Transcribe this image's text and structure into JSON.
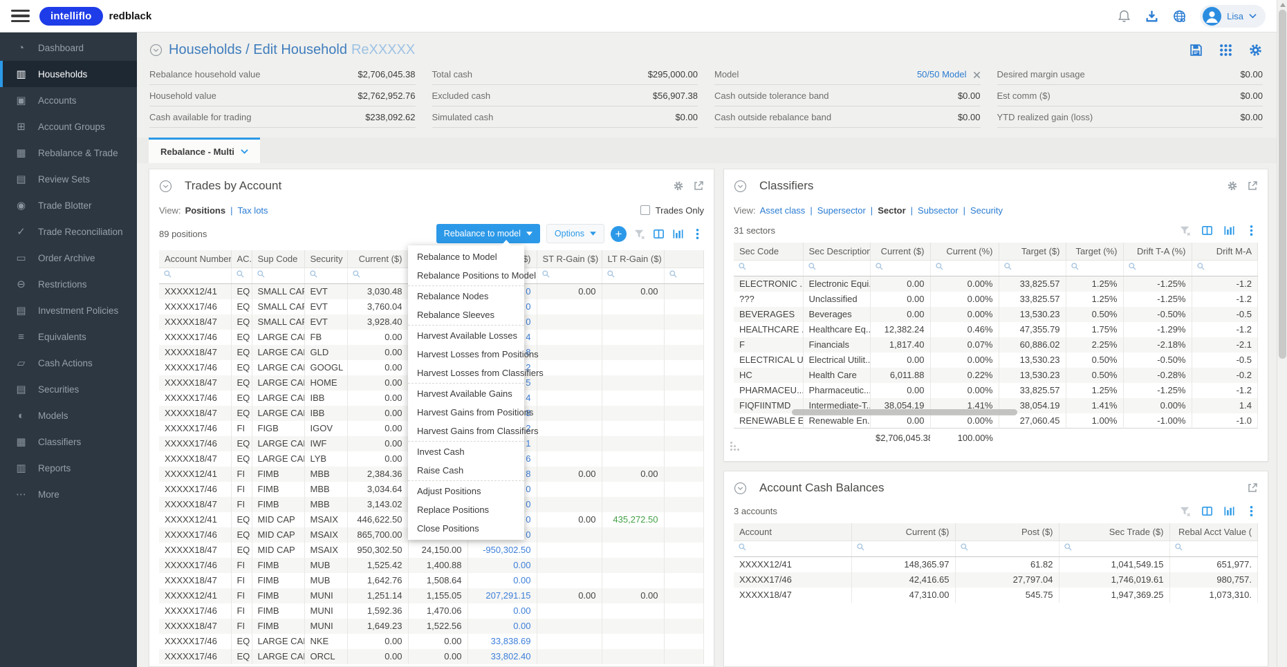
{
  "colors": {
    "accent": "#2c99e8",
    "brand": "#1e3ce8",
    "link": "#2a7cd2",
    "bluetxt": "#3d7fd9",
    "green": "#43a047",
    "sidebar": "#2d3742",
    "pagebg": "#f0f0ee"
  },
  "topbar": {
    "brand_primary": "intelliflo",
    "brand_secondary": "redblack",
    "user_name": "Lisa"
  },
  "sidebar": {
    "items": [
      {
        "label": "Dashboard",
        "icon": "dashboard-icon"
      },
      {
        "label": "Households",
        "icon": "households-icon",
        "active": true
      },
      {
        "label": "Accounts",
        "icon": "accounts-icon"
      },
      {
        "label": "Account Groups",
        "icon": "account-groups-icon"
      },
      {
        "label": "Rebalance & Trade",
        "icon": "rebalance-trade-icon"
      },
      {
        "label": "Review Sets",
        "icon": "review-sets-icon"
      },
      {
        "label": "Trade Blotter",
        "icon": "trade-blotter-icon"
      },
      {
        "label": "Trade Reconciliation",
        "icon": "trade-reconciliation-icon"
      },
      {
        "label": "Order Archive",
        "icon": "order-archive-icon"
      },
      {
        "label": "Restrictions",
        "icon": "restrictions-icon"
      },
      {
        "label": "Investment Policies",
        "icon": "investment-policies-icon"
      },
      {
        "label": "Equivalents",
        "icon": "equivalents-icon"
      },
      {
        "label": "Cash Actions",
        "icon": "cash-actions-icon"
      },
      {
        "label": "Securities",
        "icon": "securities-icon"
      },
      {
        "label": "Models",
        "icon": "models-icon"
      },
      {
        "label": "Classifiers",
        "icon": "classifiers-icon"
      },
      {
        "label": "Reports",
        "icon": "reports-icon"
      },
      {
        "label": "More",
        "icon": "more-icon"
      }
    ]
  },
  "page": {
    "breadcrumb_main": "Households / Edit Household",
    "breadcrumb_id": "ReXXXXX"
  },
  "summary": {
    "columns": [
      [
        {
          "label": "Rebalance household value",
          "value": "$2,706,045.38"
        },
        {
          "label": "Household value",
          "value": "$2,762,952.76"
        },
        {
          "label": "Cash available for trading",
          "value": "$238,092.62"
        }
      ],
      [
        {
          "label": "Total cash",
          "value": "$295,000.00"
        },
        {
          "label": "Excluded cash",
          "value": "$56,907.38"
        },
        {
          "label": "Simulated cash",
          "value": "$0.00"
        }
      ],
      [
        {
          "label": "Model",
          "value": "50/50 Model",
          "link": true,
          "closable": true
        },
        {
          "label": "Cash outside tolerance band",
          "value": "$0.00"
        },
        {
          "label": "Cash outside rebalance band",
          "value": "$0.00"
        }
      ],
      [
        {
          "label": "Desired margin usage",
          "value": "$0.00"
        },
        {
          "label": "Est comm ($)",
          "value": "$0.00"
        },
        {
          "label": "YTD realized gain (loss)",
          "value": "$0.00"
        }
      ]
    ]
  },
  "tab": {
    "label": "Rebalance - Multi"
  },
  "trades": {
    "title": "Trades by Account",
    "view_label": "View:",
    "views": [
      {
        "label": "Positions",
        "active": true
      },
      {
        "label": "Tax lots"
      }
    ],
    "trades_only_label": "Trades Only",
    "count": "89 positions",
    "rebalance_button": "Rebalance to model",
    "options_button": "Options",
    "columns": [
      "Account Number",
      "AC...",
      "Sup Code",
      "Security",
      "Current ($)",
      "",
      "($)",
      "ST R-Gain ($)",
      "LT R-Gain ($)",
      ""
    ],
    "rows": [
      [
        "XXXXX12/41",
        "EQ",
        "SMALL CAP",
        "EVT",
        "3,030.48",
        "",
        "0",
        "0.00",
        "0.00",
        ""
      ],
      [
        "XXXXX17/46",
        "EQ",
        "SMALL CAP",
        "EVT",
        "3,760.04",
        "",
        "0",
        "",
        "",
        ""
      ],
      [
        "XXXXX18/47",
        "EQ",
        "SMALL CAP",
        "EVT",
        "3,928.40",
        "",
        "0",
        "",
        "",
        ""
      ],
      [
        "XXXXX17/46",
        "EQ",
        "LARGE CAP",
        "FB",
        "0.00",
        "",
        "4",
        "",
        "",
        ""
      ],
      [
        "XXXXX18/47",
        "EQ",
        "LARGE CAP",
        "GLD",
        "0.00",
        "",
        "8",
        "",
        "",
        ""
      ],
      [
        "XXXXX17/46",
        "EQ",
        "LARGE CAP",
        "GOOGL",
        "0.00",
        "",
        "2",
        "",
        "",
        ""
      ],
      [
        "XXXXX18/47",
        "EQ",
        "LARGE CAP",
        "HOME",
        "0.00",
        "",
        "5",
        "",
        "",
        ""
      ],
      [
        "XXXXX17/46",
        "EQ",
        "LARGE CAP",
        "IBB",
        "0.00",
        "",
        "4",
        "",
        "",
        ""
      ],
      [
        "XXXXX18/47",
        "EQ",
        "LARGE CAP",
        "IBB",
        "0.00",
        "",
        "8",
        "",
        "",
        ""
      ],
      [
        "XXXXX17/46",
        "FI",
        "FIGB",
        "IGOV",
        "0.00",
        "",
        "2",
        "",
        "",
        ""
      ],
      [
        "XXXXX17/46",
        "EQ",
        "LARGE CAP",
        "IWF",
        "0.00",
        "",
        "1",
        "",
        "",
        ""
      ],
      [
        "XXXXX18/47",
        "EQ",
        "LARGE CAP",
        "LYB",
        "0.00",
        "",
        "6",
        "",
        "",
        ""
      ],
      [
        "XXXXX12/41",
        "FI",
        "FIMB",
        "MBB",
        "2,384.36",
        "",
        "8",
        "0.00",
        "0.00",
        ""
      ],
      [
        "XXXXX17/46",
        "FI",
        "FIMB",
        "MBB",
        "3,034.64",
        "",
        "0",
        "",
        "",
        ""
      ],
      [
        "XXXXX18/47",
        "FI",
        "FIMB",
        "MBB",
        "3,143.02",
        "",
        "0",
        "",
        "",
        ""
      ],
      [
        "XXXXX12/41",
        "EQ",
        "MID CAP",
        "MSAIX",
        "446,622.50",
        "",
        "0",
        "0.00",
        "435,272.50",
        ""
      ],
      [
        "XXXXX17/46",
        "EQ",
        "MID CAP",
        "MSAIX",
        "865,700.00",
        "",
        "0",
        "",
        "",
        ""
      ],
      [
        "XXXXX18/47",
        "EQ",
        "MID CAP",
        "MSAIX",
        "950,302.50",
        "24,150.00",
        "-950,302.50",
        "",
        "",
        ""
      ],
      [
        "XXXXX17/46",
        "FI",
        "FIMB",
        "MUB",
        "1,525.42",
        "1,400.88",
        "0.00",
        "",
        "",
        ""
      ],
      [
        "XXXXX18/47",
        "FI",
        "FIMB",
        "MUB",
        "1,642.76",
        "1,508.64",
        "0.00",
        "",
        "",
        ""
      ],
      [
        "XXXXX12/41",
        "FI",
        "FIMB",
        "MUNI",
        "1,251.14",
        "1,155.05",
        "207,291.15",
        "0.00",
        "0.00",
        ""
      ],
      [
        "XXXXX17/46",
        "FI",
        "FIMB",
        "MUNI",
        "1,592.36",
        "1,470.06",
        "0.00",
        "",
        "",
        ""
      ],
      [
        "XXXXX18/47",
        "FI",
        "FIMB",
        "MUNI",
        "1,649.23",
        "1,522.56",
        "0.00",
        "",
        "",
        ""
      ],
      [
        "XXXXX17/46",
        "EQ",
        "LARGE CAP",
        "NKE",
        "0.00",
        "0.00",
        "33,838.69",
        "",
        "",
        ""
      ],
      [
        "XXXXX17/46",
        "EQ",
        "LARGE CAP",
        "ORCL",
        "0.00",
        "0.00",
        "33,802.40",
        "",
        "",
        ""
      ]
    ],
    "menu_groups": [
      [
        "Rebalance to Model",
        "Rebalance Positions to Model"
      ],
      [
        "Rebalance Nodes",
        "Rebalance Sleeves"
      ],
      [
        "Harvest Available Losses",
        "Harvest Losses from Positions",
        "Harvest Losses from Classifiers"
      ],
      [
        "Harvest Available Gains",
        "Harvest Gains from Positions",
        "Harvest Gains from Classifiers"
      ],
      [
        "Invest Cash",
        "Raise Cash"
      ],
      [
        "Adjust Positions",
        "Replace Positions",
        "Close Positions"
      ]
    ]
  },
  "classifiers": {
    "title": "Classifiers",
    "view_label": "View:",
    "views": [
      {
        "label": "Asset class"
      },
      {
        "label": "Supersector"
      },
      {
        "label": "Sector",
        "active": true
      },
      {
        "label": "Subsector"
      },
      {
        "label": "Security"
      }
    ],
    "count": "31 sectors",
    "columns": [
      "Sec Code",
      "Sec Description",
      "Current ($)",
      "Current (%)",
      "Target ($)",
      "Target (%)",
      "Drift T-A (%)",
      "Drift M-A"
    ],
    "rows": [
      [
        "ELECTRONIC ...",
        "Electronic Equi...",
        "0.00",
        "0.00%",
        "33,825.57",
        "1.25%",
        "-1.25%",
        "-1.2"
      ],
      [
        "???",
        "Unclassified",
        "0.00",
        "0.00%",
        "33,825.57",
        "1.25%",
        "-1.25%",
        "-1.2"
      ],
      [
        "BEVERAGES",
        "Beverages",
        "0.00",
        "0.00%",
        "13,530.23",
        "0.50%",
        "-0.50%",
        "-0.5"
      ],
      [
        "HEALTHCARE ...",
        "Healthcare Eq...",
        "12,382.24",
        "0.46%",
        "47,355.79",
        "1.75%",
        "-1.29%",
        "-1.2"
      ],
      [
        "F",
        "Financials",
        "1,817.40",
        "0.07%",
        "60,886.02",
        "2.25%",
        "-2.18%",
        "-2.1"
      ],
      [
        "ELECTRICAL U...",
        "Electrical Utilit...",
        "0.00",
        "0.00%",
        "13,530.23",
        "0.50%",
        "-0.50%",
        "-0.5"
      ],
      [
        "HC",
        "Health Care",
        "6,011.88",
        "0.22%",
        "13,530.23",
        "0.50%",
        "-0.28%",
        "-0.2"
      ],
      [
        "PHARMACEU...",
        "Pharmaceutic...",
        "0.00",
        "0.00%",
        "33,825.57",
        "1.25%",
        "-1.25%",
        "-1.2"
      ],
      [
        "FIQFIINTMD",
        "Intermediate-T...",
        "38,054.19",
        "1.41%",
        "38,054.19",
        "1.41%",
        "0.00%",
        "1.4"
      ],
      [
        "RENEWABLE E...",
        "Renewable En...",
        "0.00",
        "0.00%",
        "27,060.45",
        "1.00%",
        "-1.00%",
        "-1.0"
      ]
    ],
    "footer": {
      "total": "$2,706,045.38",
      "percent": "100.00%"
    }
  },
  "cash_balances": {
    "title": "Account Cash Balances",
    "count": "3 accounts",
    "columns": [
      "Account",
      "Current ($)",
      "Post ($)",
      "Sec Trade ($)",
      "Rebal Acct Value ("
    ],
    "rows": [
      [
        "XXXXX12/41",
        "148,365.97",
        "61.82",
        "1,041,549.15",
        "651,977."
      ],
      [
        "XXXXX17/46",
        "42,416.65",
        "27,797.04",
        "1,746,019.61",
        "980,757."
      ],
      [
        "XXXXX18/47",
        "47,310.00",
        "545.75",
        "1,947,369.25",
        "1,073,310."
      ]
    ]
  }
}
